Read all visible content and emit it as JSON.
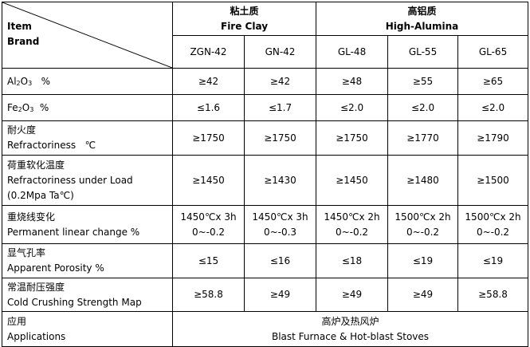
{
  "header": {
    "item_label": "Item",
    "brand_label": "Brand",
    "groups": [
      {
        "zh": "粘土质",
        "en": "Fire Clay"
      },
      {
        "zh": "高铝质",
        "en": "High-Alumina"
      }
    ],
    "brands": [
      "ZGN-42",
      "GN-42",
      "GL-48",
      "GL-55",
      "GL-65"
    ]
  },
  "rows": [
    {
      "label": {
        "zh": "",
        "en_pre": "Al",
        "sub": "2",
        "en_mid": "O",
        "sub2": "3",
        "unit": "%"
      },
      "values": [
        "≥42",
        "≥42",
        "≥48",
        "≥55",
        "≥65"
      ]
    },
    {
      "label": {
        "zh": "",
        "en_pre": "Fe",
        "sub": "2",
        "en_mid": "O",
        "sub2": "3",
        "unit": "%"
      },
      "values": [
        "≤1.6",
        "≤1.7",
        "≤2.0",
        "≤2.0",
        "≤2.0"
      ]
    },
    {
      "label": {
        "zh": "耐火度",
        "en": "Refractoriness",
        "unit": "℃"
      },
      "values": [
        "≥1750",
        "≥1750",
        "≥1750",
        "≥1770",
        "≥1790"
      ]
    },
    {
      "label": {
        "zh": "荷重软化温度",
        "en": "Refractoriness under Load",
        "en2": "(0.2Mpa Ta℃)"
      },
      "values": [
        "≥1450",
        "≥1430",
        "≥1450",
        "≥1480",
        "≥1500"
      ]
    },
    {
      "label": {
        "zh": "重烧线变化",
        "en": "Permanent linear change %"
      },
      "conditions": [
        "1450℃x 3h",
        "1450℃x 3h",
        "1450℃x 2h",
        "1500℃x 2h",
        "1500℃x 2h"
      ],
      "values": [
        "0~-0.2",
        "0~-0.3",
        "0~-0.2",
        "0~-0.2",
        "0~-0.2"
      ]
    },
    {
      "label": {
        "zh": "显气孔率",
        "en": "Apparent Porosity %"
      },
      "values": [
        "≤15",
        "≤16",
        "≤18",
        "≤19",
        "≤19"
      ]
    },
    {
      "label": {
        "zh": "常温耐压强度",
        "en": "Cold Crushing Strength Map"
      },
      "values": [
        "≥58.8",
        "≥49",
        "≥49",
        "≥49",
        "≥58.8"
      ]
    }
  ],
  "applications": {
    "label_zh": "应用",
    "label_en": "Applications",
    "value_zh": "高炉及热风炉",
    "value_en": "Blast Furnace & Hot-blast Stoves"
  }
}
